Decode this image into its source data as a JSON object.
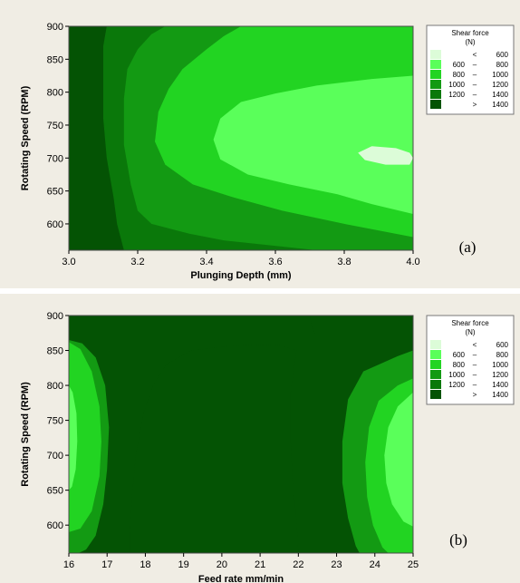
{
  "chart_data": [
    {
      "type": "contour",
      "panel_label": "(a)",
      "xlabel": "Plunging Depth (mm)",
      "ylabel": "Rotating Speed (RPM)",
      "xlim": [
        3.0,
        4.0
      ],
      "ylim": [
        560,
        900
      ],
      "x_ticks": [
        "3.0",
        "3.2",
        "3.4",
        "3.6",
        "3.8",
        "4.0"
      ],
      "x_tick_values": [
        3.0,
        3.2,
        3.4,
        3.6,
        3.8,
        4.0
      ],
      "y_ticks": [
        "900",
        "850",
        "800",
        "750",
        "700",
        "650",
        "600"
      ],
      "y_tick_values": [
        900,
        850,
        800,
        750,
        700,
        650,
        600
      ],
      "legend": {
        "title": [
          "Shear force",
          "(N)"
        ],
        "entries": [
          {
            "op": "<",
            "lo": "",
            "hi": "600",
            "color": "#dcfcd8"
          },
          {
            "op": "–",
            "lo": "600",
            "hi": "800",
            "color": "#5aff5a"
          },
          {
            "op": "–",
            "lo": "800",
            "hi": "1000",
            "color": "#22d422"
          },
          {
            "op": "–",
            "lo": "1000",
            "hi": "1200",
            "color": "#139a13"
          },
          {
            "op": "–",
            "lo": "1200",
            "hi": "1400",
            "color": "#0a780a"
          },
          {
            "op": ">",
            "lo": "",
            "hi": "1400",
            "color": "#045304"
          }
        ]
      },
      "regions": [
        {
          "level": "1200-1400",
          "color": "#0a780a",
          "points": [
            [
              3.11,
              900
            ],
            [
              4.0,
              900
            ],
            [
              4.0,
              560
            ],
            [
              3.16,
              560
            ],
            [
              3.14,
              600
            ],
            [
              3.13,
              640
            ],
            [
              3.11,
              700
            ],
            [
              3.1,
              760
            ],
            [
              3.1,
              820
            ],
            [
              3.1,
              870
            ]
          ]
        },
        {
          "level": "1000-1200",
          "color": "#139a13",
          "points": [
            [
              3.28,
              900
            ],
            [
              4.0,
              900
            ],
            [
              4.0,
              560
            ],
            [
              3.72,
              560
            ],
            [
              3.45,
              575
            ],
            [
              3.35,
              585
            ],
            [
              3.24,
              600
            ],
            [
              3.2,
              620
            ],
            [
              3.18,
              660
            ],
            [
              3.16,
              720
            ],
            [
              3.16,
              790
            ],
            [
              3.17,
              835
            ],
            [
              3.2,
              865
            ],
            [
              3.24,
              888
            ]
          ]
        },
        {
          "level": "800-1000",
          "color": "#22d422",
          "points": [
            [
              3.5,
              900
            ],
            [
              4.0,
              900
            ],
            [
              4.0,
              580
            ],
            [
              3.8,
              600
            ],
            [
              3.62,
              620
            ],
            [
              3.48,
              640
            ],
            [
              3.36,
              660
            ],
            [
              3.28,
              690
            ],
            [
              3.25,
              725
            ],
            [
              3.26,
              770
            ],
            [
              3.29,
              805
            ],
            [
              3.33,
              835
            ],
            [
              3.4,
              865
            ],
            [
              3.45,
              885
            ]
          ]
        },
        {
          "level": "600-800",
          "color": "#5aff5a",
          "points": [
            [
              4.0,
              825
            ],
            [
              3.88,
              820
            ],
            [
              3.72,
              810
            ],
            [
              3.6,
              798
            ],
            [
              3.5,
              785
            ],
            [
              3.44,
              760
            ],
            [
              3.42,
              728
            ],
            [
              3.44,
              698
            ],
            [
              3.52,
              675
            ],
            [
              3.64,
              660
            ],
            [
              3.78,
              645
            ],
            [
              3.88,
              630
            ],
            [
              4.0,
              615
            ]
          ]
        },
        {
          "level": "<600",
          "color": "#dcfcd8",
          "points": [
            [
              3.88,
              718
            ],
            [
              3.95,
              715
            ],
            [
              3.99,
              708
            ],
            [
              4.0,
              700
            ],
            [
              3.99,
              690
            ],
            [
              3.92,
              690
            ],
            [
              3.86,
              697
            ],
            [
              3.84,
              708
            ]
          ]
        }
      ]
    },
    {
      "type": "contour",
      "panel_label": "(b)",
      "xlabel": "Feed rate mm/min",
      "ylabel": "Rotating Speed (RPM)",
      "xlim": [
        16,
        25
      ],
      "ylim": [
        560,
        900
      ],
      "x_ticks": [
        "16",
        "17",
        "18",
        "19",
        "20",
        "21",
        "22",
        "23",
        "24",
        "25"
      ],
      "x_tick_values": [
        16,
        17,
        18,
        19,
        20,
        21,
        22,
        23,
        24,
        25
      ],
      "y_ticks": [
        "900",
        "850",
        "800",
        "750",
        "700",
        "650",
        "600"
      ],
      "y_tick_values": [
        900,
        850,
        800,
        750,
        700,
        650,
        600
      ],
      "legend": {
        "title": [
          "Shear force",
          "(N)"
        ],
        "entries": [
          {
            "op": "<",
            "lo": "",
            "hi": "600",
            "color": "#dcfcd8"
          },
          {
            "op": "–",
            "lo": "600",
            "hi": "800",
            "color": "#5aff5a"
          },
          {
            "op": "–",
            "lo": "800",
            "hi": "1000",
            "color": "#22d422"
          },
          {
            "op": "–",
            "lo": "1000",
            "hi": "1200",
            "color": "#139a13"
          },
          {
            "op": "–",
            "lo": "1200",
            "hi": "1400",
            "color": "#0a780a"
          },
          {
            "op": ">",
            "lo": "",
            "hi": "1400",
            "color": "#045304"
          }
        ]
      },
      "regions": [
        {
          "level": "1000-1200",
          "color": "#139a13",
          "points": [
            [
              16.0,
              865
            ],
            [
              16.35,
              860
            ],
            [
              16.7,
              840
            ],
            [
              16.95,
              800
            ],
            [
              17.05,
              740
            ],
            [
              17.0,
              680
            ],
            [
              16.9,
              630
            ],
            [
              16.7,
              585
            ],
            [
              16.45,
              565
            ],
            [
              16.25,
              560
            ],
            [
              16.0,
              560
            ]
          ]
        },
        {
          "level": "800-1000",
          "color": "#22d422",
          "points": [
            [
              16.0,
              862
            ],
            [
              16.3,
              852
            ],
            [
              16.6,
              820
            ],
            [
              16.8,
              770
            ],
            [
              16.85,
              720
            ],
            [
              16.8,
              670
            ],
            [
              16.6,
              620
            ],
            [
              16.3,
              595
            ],
            [
              16.0,
              590
            ]
          ]
        },
        {
          "level": "600-800",
          "color": "#5aff5a",
          "points": [
            [
              16.0,
              800
            ],
            [
              16.1,
              790
            ],
            [
              16.2,
              760
            ],
            [
              16.22,
              720
            ],
            [
              16.18,
              680
            ],
            [
              16.08,
              655
            ],
            [
              16.0,
              650
            ]
          ]
        },
        {
          "level": ">1400",
          "color": "#045304",
          "points": [
            [
              17.6,
              560
            ],
            [
              22.0,
              560
            ],
            [
              21.95,
              610
            ],
            [
              21.85,
              660
            ],
            [
              21.8,
              720
            ],
            [
              21.8,
              790
            ],
            [
              21.9,
              830
            ],
            [
              21.95,
              850
            ],
            [
              21.5,
              858
            ],
            [
              20.3,
              857
            ],
            [
              19.2,
              850
            ],
            [
              18.55,
              830
            ],
            [
              18.2,
              800
            ],
            [
              17.95,
              760
            ],
            [
              17.75,
              700
            ],
            [
              17.65,
              640
            ],
            [
              17.6,
              590
            ]
          ]
        },
        {
          "level": ">1400",
          "color": "#045304",
          "points": [
            [
              22.3,
              900
            ],
            [
              25.0,
              900
            ],
            [
              25.0,
              872
            ],
            [
              22.45,
              872
            ],
            [
              22.35,
              885
            ]
          ]
        },
        {
          "level": "1000-1200",
          "color": "#139a13",
          "points": [
            [
              25.0,
              850
            ],
            [
              24.6,
              842
            ],
            [
              23.7,
              820
            ],
            [
              23.3,
              780
            ],
            [
              23.15,
              720
            ],
            [
              23.15,
              660
            ],
            [
              23.3,
              610
            ],
            [
              23.5,
              570
            ],
            [
              23.6,
              560
            ],
            [
              25.0,
              560
            ]
          ]
        },
        {
          "level": "800-1000",
          "color": "#22d422",
          "points": [
            [
              25.0,
              810
            ],
            [
              24.6,
              800
            ],
            [
              24.1,
              778
            ],
            [
              23.85,
              740
            ],
            [
              23.75,
              690
            ],
            [
              23.8,
              640
            ],
            [
              23.95,
              600
            ],
            [
              24.2,
              568
            ],
            [
              24.35,
              560
            ],
            [
              25.0,
              560
            ]
          ]
        },
        {
          "level": "600-800",
          "color": "#5aff5a",
          "points": [
            [
              25.0,
              790
            ],
            [
              24.6,
              770
            ],
            [
              24.35,
              740
            ],
            [
              24.25,
              700
            ],
            [
              24.3,
              660
            ],
            [
              24.45,
              630
            ],
            [
              24.75,
              605
            ],
            [
              25.0,
              598
            ]
          ]
        }
      ]
    }
  ]
}
